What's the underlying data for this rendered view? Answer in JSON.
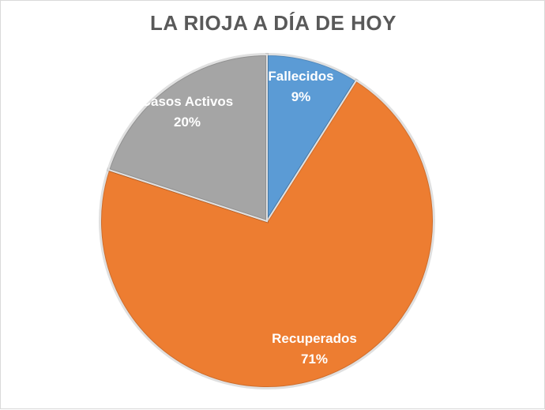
{
  "chart_data": {
    "type": "pie",
    "title": "LA RIOJA A DÍA DE HOY",
    "slices": [
      {
        "label": "Fallecidos",
        "value": 9,
        "value_label": "9%",
        "color": "#5b9bd5"
      },
      {
        "label": "Recuperados",
        "value": 71,
        "value_label": "71%",
        "color": "#ed7d31"
      },
      {
        "label": "Casos Activos",
        "value": 20,
        "value_label": "20%",
        "color": "#a5a5a5"
      }
    ],
    "start_angle_deg": 0,
    "direction": "clockwise",
    "legend": "none"
  }
}
